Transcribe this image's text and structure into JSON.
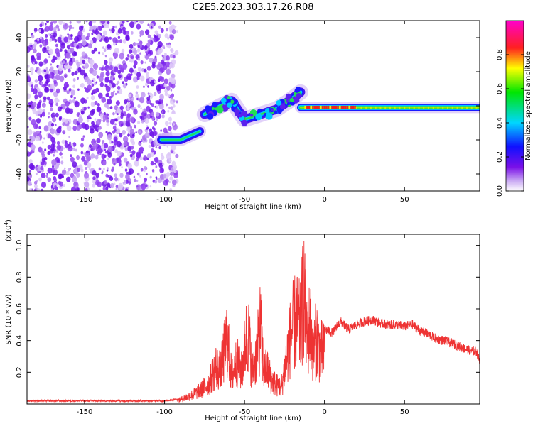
{
  "title": "C2E5.2023.303.17.26.R08",
  "chart_data": [
    {
      "type": "heatmap",
      "name": "spectrogram",
      "xlabel": "Height of straight line (km)",
      "ylabel": "Frequency (Hz)",
      "xlim": [
        -186,
        97
      ],
      "ylim": [
        -50,
        50
      ],
      "xticks": [
        -150,
        -100,
        -50,
        0,
        50
      ],
      "yticks": [
        -40,
        -20,
        0,
        20,
        40
      ],
      "colorbar": {
        "label": "Normalized spectral amplitude",
        "range": [
          0.0,
          1.0
        ],
        "ticks": [
          0.0,
          0.2,
          0.4,
          0.6,
          0.8
        ],
        "tick_labels": [
          "0.0",
          "0.2",
          "0.4",
          "0.6",
          "0.8"
        ],
        "colormap": "rainbow (white-violet-blue-cyan-green-yellow-red-magenta)"
      },
      "features": {
        "noise_region_x": [
          -186,
          -92
        ],
        "lower_branch": [
          [
            -102,
            -20
          ],
          [
            -90,
            -20
          ],
          [
            -78,
            -15
          ]
        ],
        "rising_branch": [
          [
            -75,
            -5
          ],
          [
            -65,
            0
          ],
          [
            -58,
            3
          ],
          [
            -50,
            -8
          ],
          [
            -40,
            -5
          ],
          [
            -30,
            -2
          ],
          [
            -22,
            3
          ],
          [
            -15,
            8
          ]
        ],
        "steady_tone": {
          "x": [
            -15,
            97
          ],
          "frequency_hz": -1,
          "peak_x": [
            -12,
            20
          ]
        }
      }
    },
    {
      "type": "line",
      "name": "snr",
      "xlabel": "Height of straight line (km)",
      "ylabel": "SNR (10 * v/v)",
      "y_scale_label": "(x10",
      "y_scale_exponent": "4",
      "xlim": [
        -186,
        97
      ],
      "ylim": [
        0.0,
        1.07
      ],
      "xticks": [
        -150,
        -100,
        -50,
        0,
        50
      ],
      "yticks": [
        0.2,
        0.4,
        0.6,
        0.8,
        1.0
      ],
      "color": "#ee3333",
      "series": [
        {
          "x": [
            -186,
            -150,
            -120,
            -100,
            -92,
            -85,
            -78,
            -72,
            -68,
            -65,
            -61,
            -58,
            -55,
            -52,
            -48,
            -45,
            -42,
            -40,
            -38,
            -36,
            -33,
            -30,
            -27,
            -24,
            -21,
            -18,
            -15,
            -13,
            -11,
            -9,
            -7,
            -5,
            -3,
            0,
            5,
            10,
            15,
            20,
            25,
            30,
            35,
            40,
            45,
            50,
            55,
            60,
            65,
            70,
            75,
            80,
            85,
            90,
            95,
            97
          ],
          "y": [
            0.02,
            0.02,
            0.02,
            0.02,
            0.03,
            0.07,
            0.12,
            0.2,
            0.35,
            0.3,
            0.62,
            0.25,
            0.4,
            0.3,
            0.7,
            0.3,
            0.5,
            0.74,
            0.3,
            0.33,
            0.22,
            0.18,
            0.15,
            0.4,
            0.65,
            0.78,
            0.7,
            1.07,
            0.6,
            0.75,
            0.5,
            0.62,
            0.5,
            0.47,
            0.45,
            0.52,
            0.47,
            0.5,
            0.52,
            0.53,
            0.51,
            0.5,
            0.5,
            0.49,
            0.5,
            0.46,
            0.44,
            0.41,
            0.4,
            0.38,
            0.36,
            0.34,
            0.33,
            0.27
          ]
        }
      ]
    }
  ]
}
